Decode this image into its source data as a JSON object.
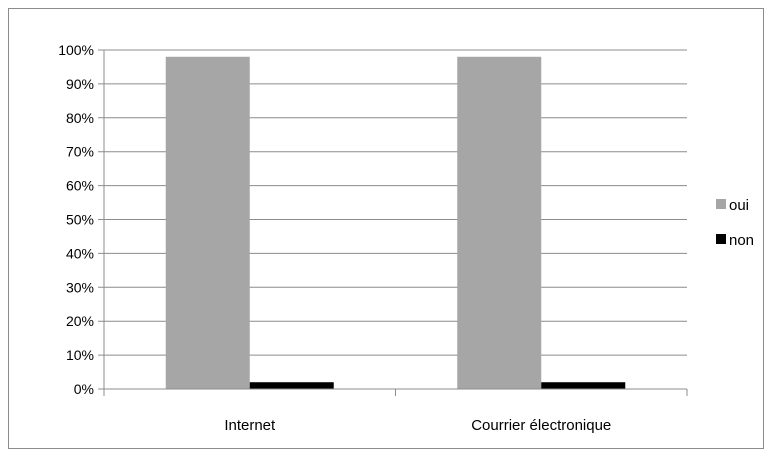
{
  "chart_data": {
    "type": "bar",
    "categories": [
      "Internet",
      "Courrier électronique"
    ],
    "series": [
      {
        "name": "oui",
        "values": [
          98,
          98
        ],
        "color": "#a6a6a6"
      },
      {
        "name": "non",
        "values": [
          2,
          2
        ],
        "color": "#000000"
      }
    ],
    "ylim": [
      0,
      100
    ],
    "yticks": [
      "0%",
      "10%",
      "20%",
      "30%",
      "40%",
      "50%",
      "60%",
      "70%",
      "80%",
      "90%",
      "100%"
    ],
    "grid": true,
    "legend_position": "right",
    "gridline_color": "#8c8c8c"
  }
}
